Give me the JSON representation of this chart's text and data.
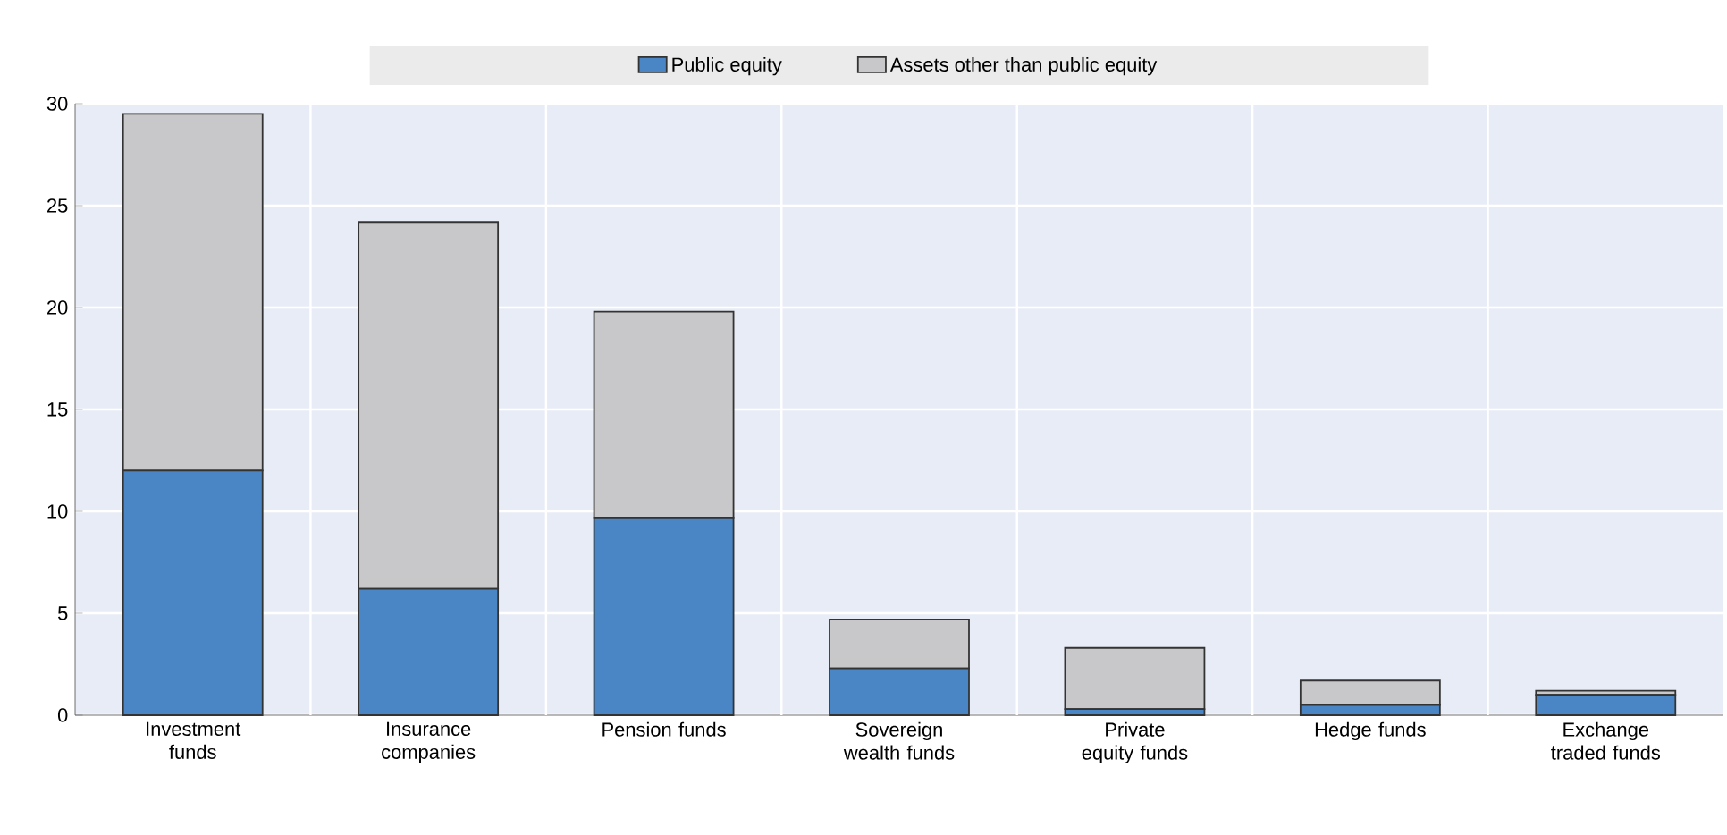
{
  "chart_data": {
    "type": "bar",
    "stacked": true,
    "legend": "top",
    "grid": true,
    "categories": [
      "Investment funds",
      "Insurance companies",
      "Pension funds",
      "Sovereign wealth funds",
      "Private equity funds",
      "Hedge funds",
      "Exchange traded funds"
    ],
    "series": [
      {
        "name": "Public equity",
        "color": "#4a86c5",
        "values": [
          12.0,
          6.2,
          9.7,
          2.3,
          0.3,
          0.5,
          1.0
        ]
      },
      {
        "name": "Assets other than public equity",
        "color": "#c8c8ca",
        "values": [
          17.5,
          18.0,
          10.1,
          2.4,
          3.0,
          1.2,
          0.2
        ]
      }
    ],
    "ylim": [
      0,
      30
    ],
    "yticks": [
      0,
      5,
      10,
      15,
      20,
      25,
      30
    ]
  }
}
